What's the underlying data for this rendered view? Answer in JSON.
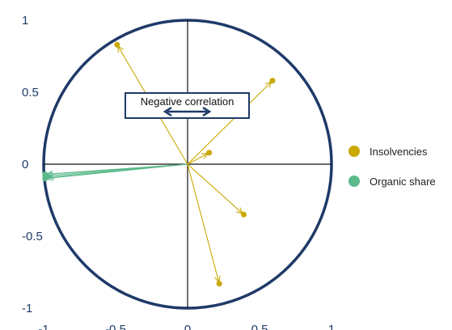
{
  "chart_data": {
    "type": "scatter",
    "subtype": "correlation-circle",
    "title": "",
    "xlabel": "",
    "ylabel": "",
    "xlim": [
      -1,
      1
    ],
    "ylim": [
      -1,
      1
    ],
    "x_ticks": [
      -1,
      -0.5,
      0,
      0.5,
      1
    ],
    "y_ticks": [
      1,
      0.5,
      0,
      -0.5,
      -1
    ],
    "x_tick_labels": [
      "-1",
      "-0.5",
      "0",
      "0.5",
      "1"
    ],
    "y_tick_labels": [
      "1",
      "0.5",
      "0",
      "-0.5",
      "-1"
    ],
    "unit_circle": true,
    "grid": false,
    "legend_position": "right",
    "series": [
      {
        "name": "Insolvencies",
        "color": "#c9a800",
        "points": [
          {
            "x": -0.49,
            "y": 0.83
          },
          {
            "x": 0.59,
            "y": 0.58
          },
          {
            "x": 0.15,
            "y": 0.08
          },
          {
            "x": 0.39,
            "y": -0.35
          },
          {
            "x": 0.22,
            "y": -0.83
          }
        ]
      },
      {
        "name": "Organic share",
        "color": "#5bb98a",
        "points": [
          {
            "x": -0.99,
            "y": -0.07
          },
          {
            "x": -0.99,
            "y": -0.08
          },
          {
            "x": -0.98,
            "y": -0.09
          },
          {
            "x": -0.99,
            "y": -0.1
          }
        ]
      }
    ],
    "annotation": {
      "text": "Negative correlation",
      "arrow": "double-headed"
    },
    "colors": {
      "circle": "#1f3a68",
      "axes": "#111111",
      "ticks": "#1f3a68"
    }
  }
}
